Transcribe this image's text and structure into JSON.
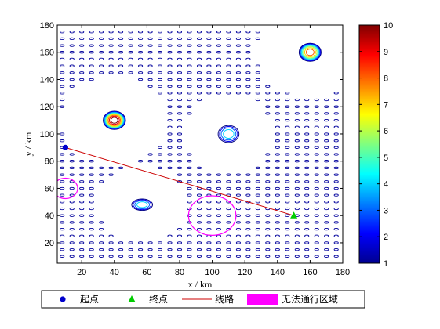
{
  "chart_data": {
    "type": "contour",
    "title": "",
    "xlabel": "x / km",
    "ylabel": "y / km",
    "xlim": [
      5,
      180
    ],
    "ylim": [
      5,
      180
    ],
    "x_ticks": [
      20,
      40,
      60,
      80,
      100,
      120,
      140,
      160,
      180
    ],
    "y_ticks": [
      20,
      40,
      60,
      80,
      100,
      120,
      140,
      160,
      180
    ],
    "colorbar": {
      "min": 1,
      "max": 10,
      "ticks": [
        1,
        2,
        3,
        4,
        5,
        6,
        7,
        8,
        9,
        10
      ]
    },
    "peaks": [
      {
        "x": 40,
        "y": 110,
        "height": 10
      },
      {
        "x": 160,
        "y": 160,
        "height": 8
      },
      {
        "x": 110,
        "y": 100,
        "height": 4
      },
      {
        "x": 57,
        "y": 48,
        "height": 4
      }
    ],
    "start_point": {
      "x": 10,
      "y": 90
    },
    "end_point": {
      "x": 150,
      "y": 40
    },
    "no_go_zones": [
      {
        "x": 10,
        "y": 60,
        "r": 7.5
      },
      {
        "x": 100,
        "y": 40,
        "r": 14.5
      }
    ],
    "legend": {
      "placement": "bottom",
      "items": [
        {
          "name": "起点",
          "marker": "dot",
          "color": "#0000cc"
        },
        {
          "name": "终点",
          "marker": "triangle",
          "color": "#00cc00"
        },
        {
          "name": "线路",
          "marker": "line",
          "color": "#cc0000"
        },
        {
          "name": "无法通行区域",
          "marker": "patch",
          "color": "#ff00ff"
        }
      ]
    }
  }
}
